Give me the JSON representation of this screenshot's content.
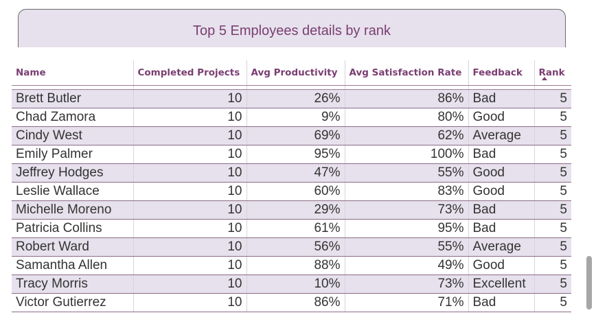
{
  "visual": {
    "title": "Top 5 Employees details by rank"
  },
  "table": {
    "columns": [
      {
        "key": "name",
        "label": "Name"
      },
      {
        "key": "projects",
        "label": "Completed Projects"
      },
      {
        "key": "productivity",
        "label": "Avg Productivity"
      },
      {
        "key": "satisfaction",
        "label": "Avg Satisfaction Rate"
      },
      {
        "key": "feedback",
        "label": "Feedback"
      },
      {
        "key": "rank",
        "label": "Rank"
      }
    ],
    "sort": {
      "column": "Rank",
      "direction": "ascending"
    },
    "rows": [
      {
        "name": "Brett Butler",
        "projects": "10",
        "productivity": "26%",
        "satisfaction": "86%",
        "feedback": "Bad",
        "rank": "5"
      },
      {
        "name": "Chad Zamora",
        "projects": "10",
        "productivity": "9%",
        "satisfaction": "80%",
        "feedback": "Good",
        "rank": "5"
      },
      {
        "name": "Cindy West",
        "projects": "10",
        "productivity": "69%",
        "satisfaction": "62%",
        "feedback": "Average",
        "rank": "5"
      },
      {
        "name": "Emily Palmer",
        "projects": "10",
        "productivity": "95%",
        "satisfaction": "100%",
        "feedback": "Bad",
        "rank": "5"
      },
      {
        "name": "Jeffrey Hodges",
        "projects": "10",
        "productivity": "47%",
        "satisfaction": "55%",
        "feedback": "Good",
        "rank": "5"
      },
      {
        "name": "Leslie Wallace",
        "projects": "10",
        "productivity": "60%",
        "satisfaction": "83%",
        "feedback": "Good",
        "rank": "5"
      },
      {
        "name": "Michelle Moreno",
        "projects": "10",
        "productivity": "29%",
        "satisfaction": "73%",
        "feedback": "Bad",
        "rank": "5"
      },
      {
        "name": "Patricia Collins",
        "projects": "10",
        "productivity": "61%",
        "satisfaction": "95%",
        "feedback": "Bad",
        "rank": "5"
      },
      {
        "name": "Robert Ward",
        "projects": "10",
        "productivity": "56%",
        "satisfaction": "55%",
        "feedback": "Average",
        "rank": "5"
      },
      {
        "name": "Samantha Allen",
        "projects": "10",
        "productivity": "88%",
        "satisfaction": "49%",
        "feedback": "Good",
        "rank": "5"
      },
      {
        "name": "Tracy Morris",
        "projects": "10",
        "productivity": "10%",
        "satisfaction": "73%",
        "feedback": "Excellent",
        "rank": "5"
      },
      {
        "name": "Victor Gutierrez",
        "projects": "10",
        "productivity": "86%",
        "satisfaction": "71%",
        "feedback": "Bad",
        "rank": "5"
      }
    ]
  },
  "colors": {
    "accent": "#7a3e72",
    "band": "#e6e1ec",
    "text": "#333333"
  }
}
